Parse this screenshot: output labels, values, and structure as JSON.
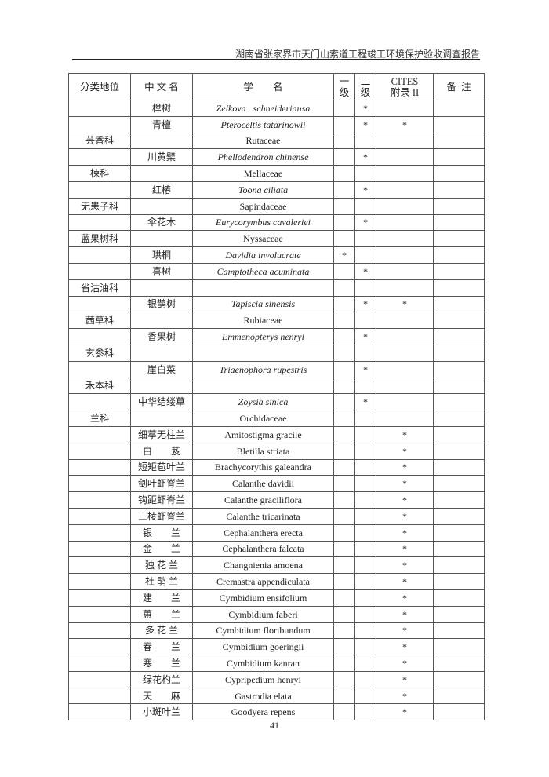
{
  "running_head": "湖南省张家界市天门山索道工程竣工环境保护验收调查报告",
  "page_number": "41",
  "table": {
    "headers": [
      "分类地位",
      "中 文 名",
      "学　　名",
      "一\n级",
      "二\n级",
      "CITES\n附录 II",
      "备  注"
    ],
    "rows": [
      {
        "cat": "",
        "cn": "榉树",
        "sci": "Zelkova   schneideriansa",
        "italic": true,
        "l1": "",
        "l2": "*",
        "cites": "",
        "note": ""
      },
      {
        "cat": "",
        "cn": "青檀",
        "sci": "Pteroceltis tatarinowii",
        "italic": true,
        "l1": "",
        "l2": "*",
        "cites": "*",
        "note": ""
      },
      {
        "cat": "芸香科",
        "cn": "",
        "sci": "Rutaceae",
        "italic": false,
        "l1": "",
        "l2": "",
        "cites": "",
        "note": ""
      },
      {
        "cat": "",
        "cn": "川黄檗",
        "sci": "Phellodendron chinense",
        "italic": true,
        "l1": "",
        "l2": "*",
        "cites": "",
        "note": ""
      },
      {
        "cat": "楝科",
        "cn": "",
        "sci": "Mellaceae",
        "italic": false,
        "l1": "",
        "l2": "",
        "cites": "",
        "note": ""
      },
      {
        "cat": "",
        "cn": "红椿",
        "sci": "Toona ciliata",
        "italic": true,
        "l1": "",
        "l2": "*",
        "cites": "",
        "note": ""
      },
      {
        "cat": "无患子科",
        "cn": "",
        "sci": "Sapindaceae",
        "italic": false,
        "l1": "",
        "l2": "",
        "cites": "",
        "note": ""
      },
      {
        "cat": "",
        "cn": "伞花木",
        "sci": "Eurycorymbus cavaleriei",
        "italic": true,
        "l1": "",
        "l2": "*",
        "cites": "",
        "note": ""
      },
      {
        "cat": "蓝果树科",
        "cn": "",
        "sci": "Nyssaceae",
        "italic": false,
        "l1": "",
        "l2": "",
        "cites": "",
        "note": ""
      },
      {
        "cat": "",
        "cn": "珙桐",
        "sci": "Davidia involucrate",
        "italic": true,
        "l1": "*",
        "l2": "",
        "cites": "",
        "note": ""
      },
      {
        "cat": "",
        "cn": "喜树",
        "sci": "Camptotheca acuminata",
        "italic": true,
        "l1": "",
        "l2": "*",
        "cites": "",
        "note": ""
      },
      {
        "cat": "省沽油科",
        "cn": "",
        "sci": "",
        "italic": false,
        "l1": "",
        "l2": "",
        "cites": "",
        "note": ""
      },
      {
        "cat": "",
        "cn": "银鹊树",
        "sci": "Tapiscia sinensis",
        "italic": true,
        "l1": "",
        "l2": "*",
        "cites": "*",
        "note": ""
      },
      {
        "cat": "茜草科",
        "cn": "",
        "sci": "Rubiaceae",
        "italic": false,
        "l1": "",
        "l2": "",
        "cites": "",
        "note": ""
      },
      {
        "cat": "",
        "cn": "香果树",
        "sci": "Emmenopterys henryi",
        "italic": true,
        "l1": "",
        "l2": "*",
        "cites": "",
        "note": ""
      },
      {
        "cat": "玄参科",
        "cn": "",
        "sci": "",
        "italic": false,
        "l1": "",
        "l2": "",
        "cites": "",
        "note": ""
      },
      {
        "cat": "",
        "cn": "崖白菜",
        "sci": "Triaenophora rupestris",
        "italic": true,
        "l1": "",
        "l2": "*",
        "cites": "",
        "note": ""
      },
      {
        "cat": "禾本科",
        "cn": "",
        "sci": "",
        "italic": false,
        "l1": "",
        "l2": "",
        "cites": "",
        "note": ""
      },
      {
        "cat": "",
        "cn": "中华结缕草",
        "sci": "Zoysia sinica",
        "italic": true,
        "l1": "",
        "l2": "*",
        "cites": "",
        "note": ""
      },
      {
        "cat": "兰科",
        "cn": "",
        "sci": "Orchidaceae",
        "italic": false,
        "l1": "",
        "l2": "",
        "cites": "",
        "note": ""
      },
      {
        "cat": "",
        "cn": "细葶无柱兰",
        "sci": "Amitostigma gracile",
        "italic": false,
        "l1": "",
        "l2": "",
        "cites": "*",
        "note": ""
      },
      {
        "cat": "",
        "cn": "白　　芨",
        "sci": "Bletilla striata",
        "italic": false,
        "l1": "",
        "l2": "",
        "cites": "*",
        "note": ""
      },
      {
        "cat": "",
        "cn": "短矩苞叶兰",
        "sci": "Brachycorythis galeandra",
        "italic": false,
        "l1": "",
        "l2": "",
        "cites": "*",
        "note": ""
      },
      {
        "cat": "",
        "cn": "剑叶虾脊兰",
        "sci": "Calanthe davidii",
        "italic": false,
        "l1": "",
        "l2": "",
        "cites": "*",
        "note": ""
      },
      {
        "cat": "",
        "cn": "钩距虾脊兰",
        "sci": "Calanthe graciliflora",
        "italic": false,
        "l1": "",
        "l2": "",
        "cites": "*",
        "note": ""
      },
      {
        "cat": "",
        "cn": "三棱虾脊兰",
        "sci": "Calanthe tricarinata",
        "italic": false,
        "l1": "",
        "l2": "",
        "cites": "*",
        "note": ""
      },
      {
        "cat": "",
        "cn": "银　　兰",
        "sci": "Cephalanthera erecta",
        "italic": false,
        "l1": "",
        "l2": "",
        "cites": "*",
        "note": ""
      },
      {
        "cat": "",
        "cn": "金　　兰",
        "sci": "Cephalanthera falcata",
        "italic": false,
        "l1": "",
        "l2": "",
        "cites": "*",
        "note": ""
      },
      {
        "cat": "",
        "cn": "独 花 兰",
        "sci": "Changnienia amoena",
        "italic": false,
        "l1": "",
        "l2": "",
        "cites": "*",
        "note": ""
      },
      {
        "cat": "",
        "cn": "杜 鹃 兰",
        "sci": "Cremastra appendiculata",
        "italic": false,
        "l1": "",
        "l2": "",
        "cites": "*",
        "note": ""
      },
      {
        "cat": "",
        "cn": "建　　兰",
        "sci": "Cymbidium ensifolium",
        "italic": false,
        "l1": "",
        "l2": "",
        "cites": "*",
        "note": ""
      },
      {
        "cat": "",
        "cn": "蕙　　兰",
        "sci": "Cymbidium faberi",
        "italic": false,
        "l1": "",
        "l2": "",
        "cites": "*",
        "note": ""
      },
      {
        "cat": "",
        "cn": "多 花 兰",
        "sci": "Cymbidium floribundum",
        "italic": false,
        "l1": "",
        "l2": "",
        "cites": "*",
        "note": ""
      },
      {
        "cat": "",
        "cn": "春　　兰",
        "sci": "Cymbidium goeringii",
        "italic": false,
        "l1": "",
        "l2": "",
        "cites": "*",
        "note": ""
      },
      {
        "cat": "",
        "cn": "寒　　兰",
        "sci": "Cymbidium kanran",
        "italic": false,
        "l1": "",
        "l2": "",
        "cites": "*",
        "note": ""
      },
      {
        "cat": "",
        "cn": "绿花杓兰",
        "sci": "Cypripedium henryi",
        "italic": false,
        "l1": "",
        "l2": "",
        "cites": "*",
        "note": ""
      },
      {
        "cat": "",
        "cn": "天　　麻",
        "sci": "Gastrodia elata",
        "italic": false,
        "l1": "",
        "l2": "",
        "cites": "*",
        "note": ""
      },
      {
        "cat": "",
        "cn": "小斑叶兰",
        "sci": "Goodyera repens",
        "italic": false,
        "l1": "",
        "l2": "",
        "cites": "*",
        "note": ""
      }
    ]
  }
}
